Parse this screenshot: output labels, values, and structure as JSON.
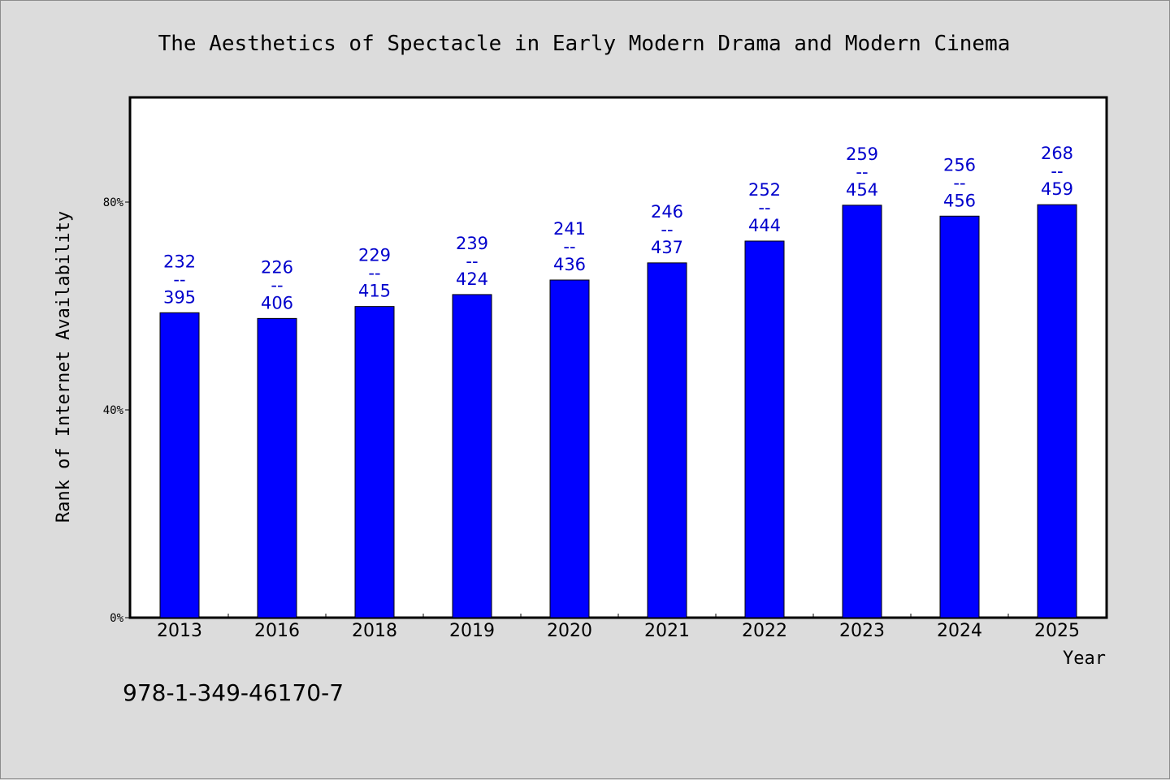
{
  "chart_data": {
    "type": "bar",
    "title": "The Aesthetics of Spectacle in Early Modern Drama and Modern Cinema",
    "xlabel": "Year",
    "ylabel": "Rank of Internet Availability",
    "categories": [
      "2013",
      "2016",
      "2018",
      "2019",
      "2020",
      "2021",
      "2022",
      "2023",
      "2024",
      "2025"
    ],
    "series": [
      {
        "values": [
          58.7,
          57.6,
          59.9,
          62.2,
          65.0,
          68.3,
          72.5,
          79.4,
          77.3,
          79.5
        ],
        "labels": [
          [
            "232",
            "--",
            "395"
          ],
          [
            "226",
            "--",
            "406"
          ],
          [
            "229",
            "--",
            "415"
          ],
          [
            "239",
            "--",
            "424"
          ],
          [
            "241",
            "--",
            "436"
          ],
          [
            "246",
            "--",
            "437"
          ],
          [
            "252",
            "--",
            "444"
          ],
          [
            "259",
            "--",
            "454"
          ],
          [
            "256",
            "--",
            "456"
          ],
          [
            "268",
            "--",
            "459"
          ]
        ]
      }
    ],
    "ylim": [
      0,
      100
    ],
    "yticks": [
      0,
      40,
      80
    ],
    "ytick_labels": [
      "0%",
      "40%",
      "80%"
    ],
    "bar_color": "#0000ff",
    "label_color": "#0000cc",
    "plot_background": "#ffffff",
    "page_background": "#dcdcdc",
    "grid": false,
    "legend": "none"
  },
  "footer_text": "978-1-349-46170-7"
}
